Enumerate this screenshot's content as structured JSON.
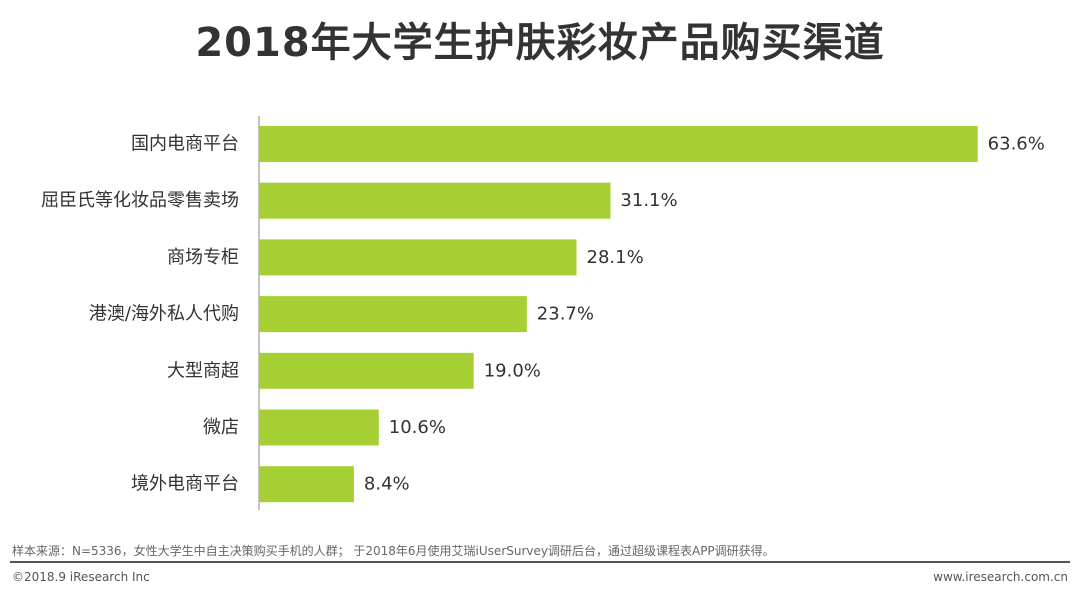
{
  "chart_data": {
    "type": "bar",
    "orientation": "horizontal",
    "title": "2018年大学生护肤彩妆产品购买渠道",
    "categories": [
      "国内电商平台",
      "屈臣氏等化妆品零售卖场",
      "商场专柜",
      "港澳/海外私人代购",
      "大型商超",
      "微店",
      "境外电商平台"
    ],
    "values": [
      63.6,
      31.1,
      28.1,
      23.7,
      19.0,
      10.6,
      8.4
    ],
    "value_labels": [
      "63.6%",
      "31.1%",
      "28.1%",
      "23.7%",
      "19.0%",
      "10.6%",
      "8.4%"
    ],
    "bar_color": "#a6cf33",
    "xlim": [
      0,
      70
    ],
    "grid": false,
    "legend": "none"
  },
  "footnote": "样本来源：N=5336，女性大学生中自主决策购买手机的人群； 于2018年6月使用艾瑞iUserSurvey调研后台，通过超级课程表APP调研获得。",
  "copyright": "©2018.9 iResearch Inc",
  "website": "www.iresearch.com.cn"
}
